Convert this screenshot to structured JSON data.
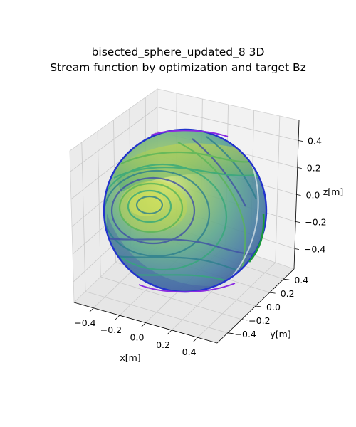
{
  "chart_data": {
    "type": "3d-surface",
    "title": "bisected_sphere_updated_8 3D",
    "subtitle": "Stream function by optimization and target Bz",
    "xlabel": "x[m]",
    "ylabel": "y[m]",
    "zlabel": "z[m]",
    "xlim": [
      -0.55,
      0.55
    ],
    "ylim": [
      -0.55,
      0.55
    ],
    "zlim": [
      -0.55,
      0.55
    ],
    "x_ticks": [
      "−0.4",
      "−0.2",
      "0.0",
      "0.2",
      "0.4"
    ],
    "y_ticks": [
      "−0.4",
      "−0.2",
      "0.0",
      "0.2",
      "0.4"
    ],
    "z_ticks": [
      "−0.4",
      "−0.2",
      "0.0",
      "0.2",
      "0.4"
    ],
    "grid": true,
    "surface": {
      "shape": "sphere",
      "radius": 0.5,
      "colormap": "viridis",
      "contour_colors": [
        "#3f51a6",
        "#2c7f8e",
        "#35a87a",
        "#58b558"
      ],
      "edge_colors": [
        "#8a2be2",
        "#2233cc",
        "#1a9a3a"
      ]
    }
  }
}
